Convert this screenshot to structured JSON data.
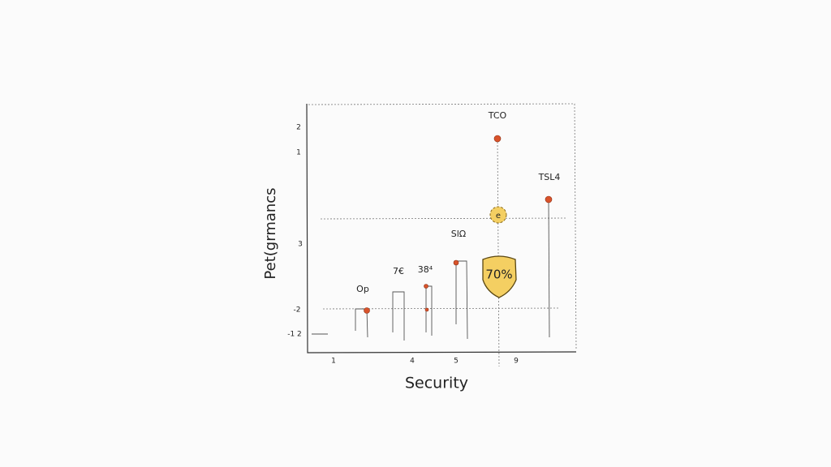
{
  "axes": {
    "x_label": "Security",
    "y_label": "Pet(grmancs",
    "x_ticks": [
      "1",
      "4",
      "5",
      "9"
    ],
    "y_ticks": [
      "2",
      "1",
      "3",
      "-2",
      "-1 2"
    ]
  },
  "points": [
    {
      "label": "Op"
    },
    {
      "label": "7€"
    },
    {
      "label": "38⁴"
    },
    {
      "label": "SlΩ"
    },
    {
      "label": "TCO"
    },
    {
      "label": "TSL4"
    }
  ],
  "badges": [
    {
      "label": "e"
    },
    {
      "label": "70%"
    }
  ]
}
